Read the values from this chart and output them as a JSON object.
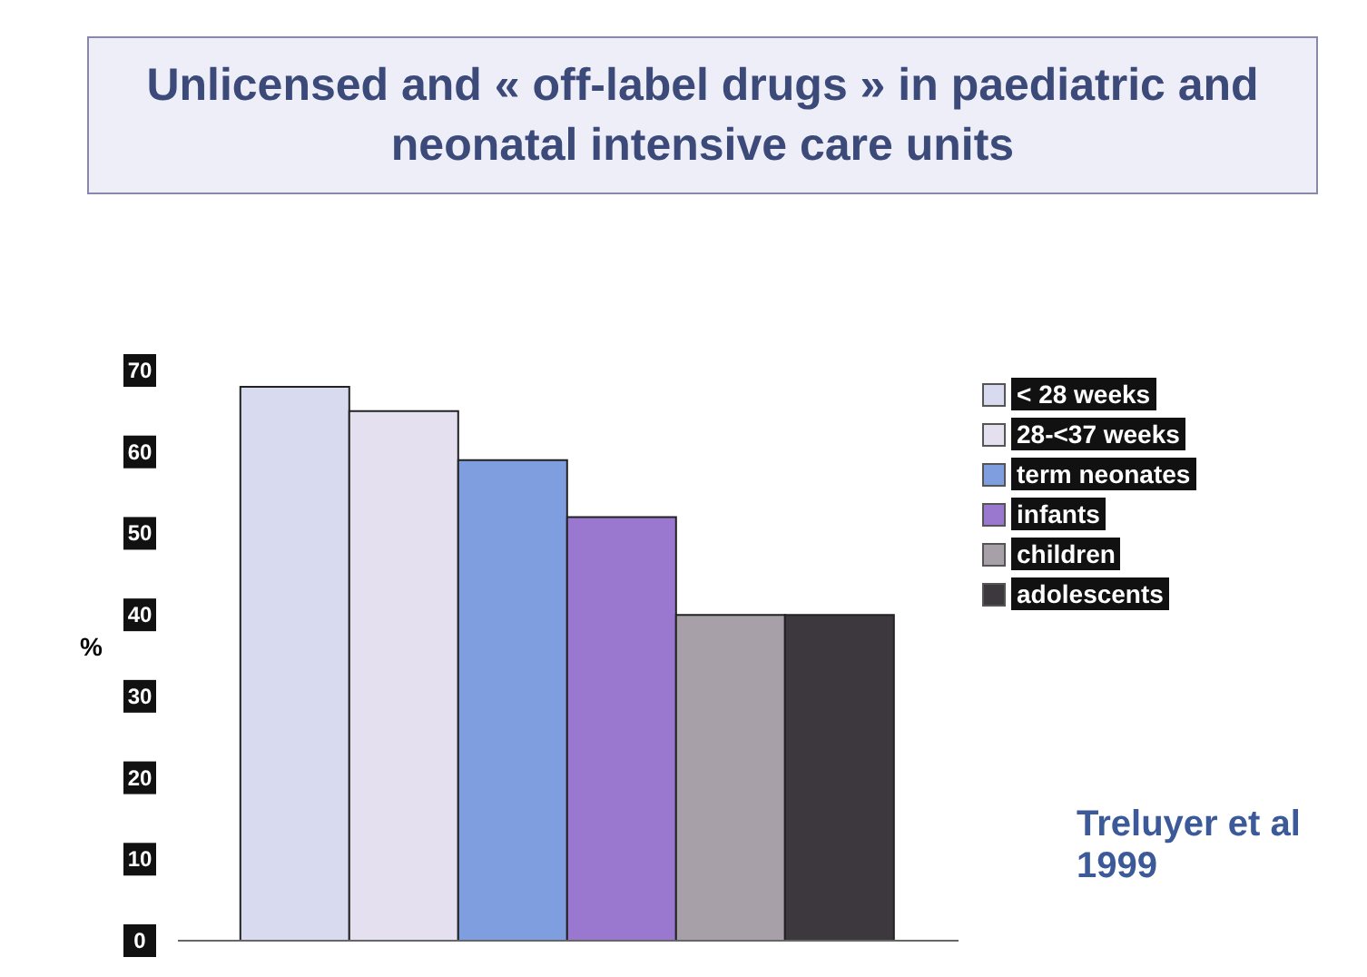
{
  "chart_data": {
    "type": "bar",
    "title": "Unlicensed and « off-label drugs » in paediatric and neonatal intensive care units",
    "ylabel": "%",
    "categories": [
      null
    ],
    "series": [
      {
        "name": "< 28 weeks",
        "color": "#d8daf0",
        "values": [
          68
        ]
      },
      {
        "name": "28-<37 weeks",
        "color": "#e4e0f0",
        "values": [
          65
        ]
      },
      {
        "name": "term neonates",
        "color": "#7f9ee0",
        "values": [
          59
        ]
      },
      {
        "name": "infants",
        "color": "#9a78d0",
        "values": [
          52
        ]
      },
      {
        "name": "children",
        "color": "#a8a0a8",
        "values": [
          40
        ]
      },
      {
        "name": "adolescents",
        "color": "#3c383e",
        "values": [
          40
        ]
      }
    ],
    "ylim": [
      0,
      70
    ],
    "yticks": [
      0,
      10,
      20,
      30,
      40,
      50,
      60,
      70
    ],
    "legend": "right",
    "annotations": [
      "Treluyer et al\n1999"
    ]
  }
}
